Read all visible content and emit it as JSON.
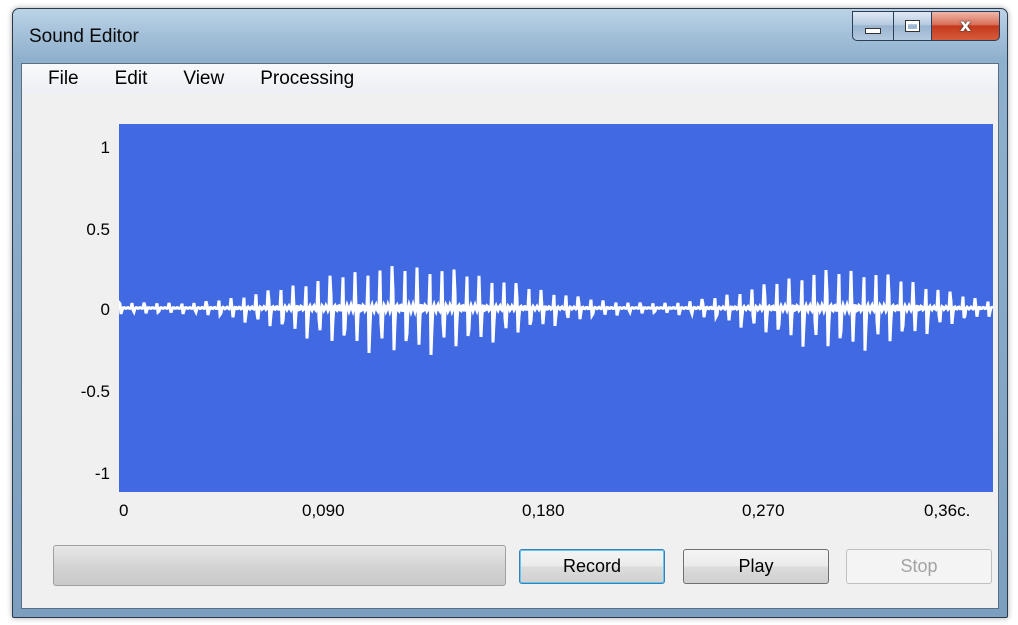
{
  "window": {
    "title": "Sound Editor",
    "close_glyph": "x"
  },
  "menu": {
    "items": [
      "File",
      "Edit",
      "View",
      "Processing"
    ]
  },
  "waveform": {
    "y_ticks": [
      "1",
      "0.5",
      "0",
      "-0.5",
      "-1"
    ],
    "x_ticks": [
      "0",
      "0,090",
      "0,180",
      "0,270",
      "0,36c."
    ],
    "background_color": "#4169e1",
    "wave_color": "#ffffff",
    "ylim": [
      -1,
      1
    ],
    "xlim": [
      0,
      0.36
    ]
  },
  "controls": {
    "progress_value": 0,
    "record_label": "Record",
    "play_label": "Play",
    "stop_label": "Stop",
    "stop_enabled": false
  }
}
